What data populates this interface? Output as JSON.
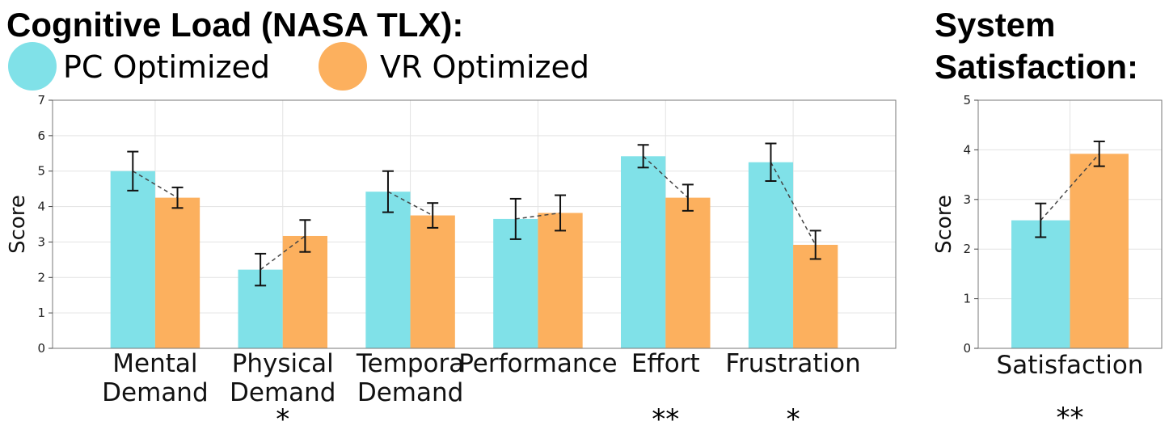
{
  "titles": {
    "left": "Cognitive Load (NASA TLX):",
    "right_line1": "System",
    "right_line2": "Satisfaction:"
  },
  "legend": [
    {
      "label": "PC Optimized",
      "color": "#80E1E8"
    },
    {
      "label": "VR Optimized",
      "color": "#FCB05E"
    }
  ],
  "chart_data": [
    {
      "type": "bar",
      "title": "Cognitive Load (NASA TLX):",
      "ylabel": "Score",
      "xlabel": "",
      "ylim": [
        0,
        7
      ],
      "yticks": [
        0,
        1,
        2,
        3,
        4,
        5,
        6,
        7
      ],
      "grid": true,
      "categories": [
        "Mental Demand",
        "Physical Demand",
        "Temporal Demand",
        "Performance",
        "Effort",
        "Frustration"
      ],
      "category_labels": [
        [
          "Mental",
          "Demand"
        ],
        [
          "Physical",
          "Demand"
        ],
        [
          "Tempora",
          "Demand"
        ],
        [
          "Performance"
        ],
        [
          "Effort"
        ],
        [
          "Frustration"
        ]
      ],
      "series": [
        {
          "name": "PC Optimized",
          "color": "#80E1E8",
          "values": [
            5.0,
            2.22,
            4.42,
            3.65,
            5.42,
            5.25
          ],
          "error": [
            0.55,
            0.45,
            0.58,
            0.57,
            0.32,
            0.53
          ]
        },
        {
          "name": "VR Optimized",
          "color": "#FCB05E",
          "values": [
            4.25,
            3.17,
            3.75,
            3.82,
            4.25,
            2.92
          ],
          "error": [
            0.29,
            0.45,
            0.35,
            0.5,
            0.37,
            0.4
          ]
        }
      ],
      "significance": [
        "",
        "*",
        "",
        "",
        "**",
        "*"
      ]
    },
    {
      "type": "bar",
      "title": "System Satisfaction:",
      "ylabel": "Score",
      "xlabel": "",
      "ylim": [
        0,
        5
      ],
      "yticks": [
        0,
        1,
        2,
        3,
        4,
        5
      ],
      "grid": true,
      "categories": [
        "Satisfaction"
      ],
      "category_labels": [
        [
          "Satisfaction"
        ]
      ],
      "series": [
        {
          "name": "PC Optimized",
          "color": "#80E1E8",
          "values": [
            2.58
          ],
          "error": [
            0.34
          ]
        },
        {
          "name": "VR Optimized",
          "color": "#FCB05E",
          "values": [
            3.92
          ],
          "error": [
            0.25
          ]
        }
      ],
      "significance": [
        "**"
      ]
    }
  ]
}
